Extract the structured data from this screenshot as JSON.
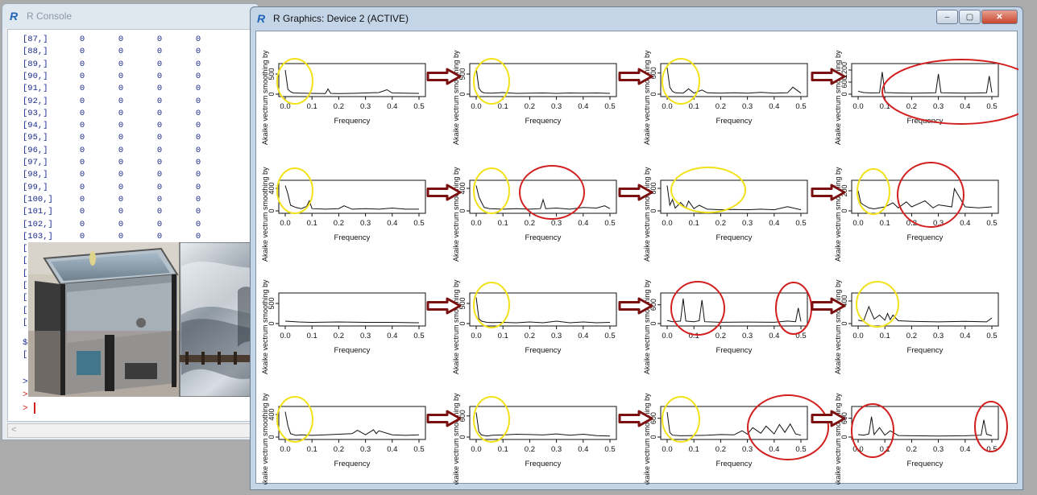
{
  "console": {
    "title": "R Console",
    "rows": [
      {
        "idx": "[87,]",
        "cells": [
          "0",
          "0",
          "0",
          "0"
        ]
      },
      {
        "idx": "[88,]",
        "cells": [
          "0",
          "0",
          "0",
          "0"
        ]
      },
      {
        "idx": "[89,]",
        "cells": [
          "0",
          "0",
          "0",
          "0"
        ]
      },
      {
        "idx": "[90,]",
        "cells": [
          "0",
          "0",
          "0",
          "0"
        ]
      },
      {
        "idx": "[91,]",
        "cells": [
          "0",
          "0",
          "0",
          "0"
        ]
      },
      {
        "idx": "[92,]",
        "cells": [
          "0",
          "0",
          "0",
          "0"
        ]
      },
      {
        "idx": "[93,]",
        "cells": [
          "0",
          "0",
          "0",
          "0"
        ]
      },
      {
        "idx": "[94,]",
        "cells": [
          "0",
          "0",
          "0",
          "0"
        ]
      },
      {
        "idx": "[95,]",
        "cells": [
          "0",
          "0",
          "0",
          "0"
        ]
      },
      {
        "idx": "[96,]",
        "cells": [
          "0",
          "0",
          "0",
          "0"
        ]
      },
      {
        "idx": "[97,]",
        "cells": [
          "0",
          "0",
          "0",
          "0"
        ]
      },
      {
        "idx": "[98,]",
        "cells": [
          "0",
          "0",
          "0",
          "0"
        ]
      },
      {
        "idx": "[99,]",
        "cells": [
          "0",
          "0",
          "0",
          "0"
        ]
      },
      {
        "idx": "[100,]",
        "cells": [
          "0",
          "0",
          "0",
          "0"
        ]
      },
      {
        "idx": "[101,]",
        "cells": [
          "0",
          "0",
          "0",
          "0"
        ]
      },
      {
        "idx": "[102,]",
        "cells": [
          "0",
          "0",
          "0",
          "0"
        ]
      },
      {
        "idx": "[103,]",
        "cells": [
          "0",
          "0",
          "0",
          "0"
        ]
      }
    ],
    "partial_lines": [
      "[1",
      "[1",
      "[1",
      "[1",
      "[1",
      "[1",
      "[1"
    ],
    "dollar_line": "$e",
    "dollar_value": "[1",
    "prompt": ">"
  },
  "graphics": {
    "title": "R Graphics: Device 2 (ACTIVE)",
    "minimize": "‒",
    "maximize": "▢",
    "close": "✕"
  },
  "chart_data": [
    {
      "type": "line",
      "panel": "r1c1",
      "xlabel": "Frequency",
      "ylabel": "Akaike  vectrum smoothing by",
      "xticks": [
        "0.0",
        "0.1",
        "0.2",
        "0.3",
        "0.4",
        "0.5"
      ],
      "yticks": [
        "0",
        "500"
      ],
      "ylim": [
        0,
        700
      ],
      "x": [
        0.0,
        0.01,
        0.02,
        0.03,
        0.06,
        0.1,
        0.15,
        0.16,
        0.17,
        0.2,
        0.25,
        0.3,
        0.35,
        0.38,
        0.4,
        0.45,
        0.5
      ],
      "y": [
        600,
        120,
        60,
        30,
        25,
        20,
        15,
        130,
        20,
        15,
        20,
        30,
        40,
        110,
        30,
        25,
        20
      ]
    },
    {
      "type": "line",
      "panel": "r1c2",
      "xlabel": "Frequency",
      "ylabel": "Akaike  vectrum smoothing by",
      "xticks": [
        "0.0",
        "0.1",
        "0.2",
        "0.3",
        "0.4",
        "0.5"
      ],
      "yticks": [
        "0",
        "500"
      ],
      "ylim": [
        0,
        700
      ],
      "x": [
        0.0,
        0.01,
        0.02,
        0.03,
        0.06,
        0.1,
        0.15,
        0.2,
        0.25,
        0.3,
        0.35,
        0.4,
        0.45,
        0.5
      ],
      "y": [
        650,
        150,
        60,
        30,
        25,
        40,
        20,
        25,
        30,
        20,
        30,
        25,
        30,
        20
      ]
    },
    {
      "type": "line",
      "panel": "r1c3",
      "xlabel": "Frequency",
      "ylabel": "Akaike  vectrum smoothing by",
      "xticks": [
        "0.0",
        "0.1",
        "0.2",
        "0.3",
        "0.4",
        "0.5"
      ],
      "yticks": [
        "0",
        "600"
      ],
      "ylim": [
        0,
        800
      ],
      "x": [
        0.0,
        0.01,
        0.02,
        0.03,
        0.06,
        0.08,
        0.1,
        0.13,
        0.15,
        0.2,
        0.25,
        0.3,
        0.35,
        0.4,
        0.45,
        0.47,
        0.5
      ],
      "y": [
        750,
        200,
        80,
        40,
        30,
        150,
        30,
        120,
        40,
        30,
        40,
        30,
        50,
        30,
        40,
        200,
        30
      ]
    },
    {
      "type": "line",
      "panel": "r1c4",
      "xlabel": "Frequency",
      "ylabel": "Akaike  vectrum smoothing by",
      "xticks": [
        "0.0",
        "0.1",
        "0.2",
        "0.3",
        "0.4",
        "0.5"
      ],
      "yticks": [
        "0",
        "600",
        "1200"
      ],
      "ylim": [
        0,
        1400
      ],
      "x": [
        0.0,
        0.02,
        0.05,
        0.08,
        0.09,
        0.1,
        0.15,
        0.2,
        0.25,
        0.29,
        0.3,
        0.31,
        0.35,
        0.4,
        0.45,
        0.48,
        0.49,
        0.5
      ],
      "y": [
        150,
        80,
        60,
        70,
        1100,
        80,
        60,
        50,
        60,
        70,
        1000,
        70,
        60,
        50,
        60,
        70,
        900,
        80
      ]
    },
    {
      "type": "line",
      "panel": "r2c1",
      "xlabel": "Frequency",
      "ylabel": "Akaike  vectrum smoothing by",
      "xticks": [
        "0.0",
        "0.1",
        "0.2",
        "0.3",
        "0.4",
        "0.5"
      ],
      "yticks": [
        "0",
        "400"
      ],
      "ylim": [
        0,
        500
      ],
      "x": [
        0.0,
        0.01,
        0.02,
        0.04,
        0.06,
        0.08,
        0.09,
        0.1,
        0.15,
        0.2,
        0.22,
        0.25,
        0.3,
        0.35,
        0.4,
        0.45,
        0.5
      ],
      "y": [
        450,
        300,
        100,
        60,
        40,
        80,
        180,
        40,
        30,
        40,
        90,
        30,
        40,
        30,
        50,
        30,
        30
      ]
    },
    {
      "type": "line",
      "panel": "r2c2",
      "xlabel": "Frequency",
      "ylabel": "Akaike  vectrum smoothing by",
      "xticks": [
        "0.0",
        "0.1",
        "0.2",
        "0.3",
        "0.4",
        "0.5"
      ],
      "yticks": [
        "0",
        "400"
      ],
      "ylim": [
        0,
        500
      ],
      "x": [
        0.0,
        0.01,
        0.02,
        0.03,
        0.05,
        0.1,
        0.15,
        0.2,
        0.24,
        0.25,
        0.26,
        0.3,
        0.35,
        0.4,
        0.45,
        0.48,
        0.5
      ],
      "y": [
        450,
        250,
        150,
        60,
        40,
        30,
        40,
        30,
        40,
        200,
        40,
        50,
        30,
        60,
        50,
        90,
        40
      ]
    },
    {
      "type": "line",
      "panel": "r2c3",
      "xlabel": "Frequency",
      "ylabel": "Akaike  vectrum smoothing by",
      "xticks": [
        "0.0",
        "0.1",
        "0.2",
        "0.3",
        "0.4",
        "0.5"
      ],
      "yticks": [
        "0",
        "800"
      ],
      "ylim": [
        0,
        1000
      ],
      "x": [
        0.0,
        0.01,
        0.02,
        0.03,
        0.05,
        0.07,
        0.08,
        0.1,
        0.12,
        0.15,
        0.2,
        0.25,
        0.3,
        0.35,
        0.4,
        0.45,
        0.5
      ],
      "y": [
        900,
        200,
        400,
        100,
        300,
        100,
        350,
        80,
        200,
        60,
        40,
        50,
        40,
        60,
        40,
        150,
        40
      ]
    },
    {
      "type": "line",
      "panel": "r2c4",
      "xlabel": "Frequency",
      "ylabel": "Akaike  vectrum smoothing by",
      "xticks": [
        "0.0",
        "0.1",
        "0.2",
        "0.3",
        "0.4",
        "0.5"
      ],
      "yticks": [
        "0",
        "200"
      ],
      "ylim": [
        0,
        280
      ],
      "x": [
        0.0,
        0.01,
        0.02,
        0.04,
        0.06,
        0.1,
        0.13,
        0.15,
        0.18,
        0.2,
        0.25,
        0.28,
        0.3,
        0.35,
        0.36,
        0.4,
        0.45,
        0.5
      ],
      "y": [
        200,
        80,
        60,
        30,
        20,
        40,
        80,
        30,
        90,
        40,
        100,
        30,
        60,
        40,
        220,
        40,
        30,
        40
      ]
    },
    {
      "type": "line",
      "panel": "r3c1",
      "xlabel": "Frequency",
      "ylabel": "Akaike  vectrum smoothing by",
      "xticks": [
        "0.0",
        "0.1",
        "0.2",
        "0.3",
        "0.4",
        "0.5"
      ],
      "yticks": [
        "0",
        "500"
      ],
      "ylim": [
        0,
        700
      ],
      "x": [
        0.0,
        0.05,
        0.1,
        0.2,
        0.3,
        0.4,
        0.5
      ],
      "y": [
        60,
        40,
        30,
        40,
        30,
        30,
        20
      ]
    },
    {
      "type": "line",
      "panel": "r3c2",
      "xlabel": "Frequency",
      "ylabel": "Akaike  vectrum smoothing by",
      "xticks": [
        "0.0",
        "0.1",
        "0.2",
        "0.3",
        "0.4",
        "0.5"
      ],
      "yticks": [
        "0",
        "500"
      ],
      "ylim": [
        0,
        700
      ],
      "x": [
        0.0,
        0.01,
        0.02,
        0.04,
        0.06,
        0.1,
        0.15,
        0.2,
        0.25,
        0.3,
        0.35,
        0.4,
        0.45,
        0.5
      ],
      "y": [
        650,
        120,
        60,
        30,
        25,
        30,
        20,
        40,
        20,
        60,
        20,
        40,
        20,
        30
      ]
    },
    {
      "type": "line",
      "panel": "r3c3",
      "xlabel": "Frequency",
      "ylabel": "Akaike  vectrum smoothing by",
      "xticks": [
        "0.0",
        "0.1",
        "0.2",
        "0.3",
        "0.4",
        "0.5"
      ],
      "yticks": [
        "0",
        "600"
      ],
      "ylim": [
        0,
        900
      ],
      "x": [
        0.0,
        0.02,
        0.05,
        0.06,
        0.07,
        0.1,
        0.12,
        0.13,
        0.14,
        0.2,
        0.3,
        0.4,
        0.45,
        0.48,
        0.49,
        0.5
      ],
      "y": [
        100,
        60,
        80,
        800,
        80,
        60,
        90,
        750,
        60,
        40,
        50,
        40,
        80,
        60,
        500,
        70
      ]
    },
    {
      "type": "line",
      "panel": "r3c4",
      "xlabel": "Frequency",
      "ylabel": "Akaike  vectrum smoothing by",
      "xticks": [
        "0.0",
        "0.1",
        "0.2",
        "0.3",
        "0.4",
        "0.5"
      ],
      "yticks": [
        "0",
        "400"
      ],
      "ylim": [
        0,
        500
      ],
      "x": [
        0.0,
        0.02,
        0.04,
        0.06,
        0.08,
        0.1,
        0.11,
        0.12,
        0.13,
        0.15,
        0.2,
        0.3,
        0.4,
        0.48,
        0.5
      ],
      "y": [
        60,
        40,
        300,
        80,
        150,
        60,
        180,
        70,
        150,
        50,
        40,
        30,
        40,
        30,
        100
      ]
    },
    {
      "type": "line",
      "panel": "r4c1",
      "xlabel": "Frequency",
      "ylabel": "Akaike  vectrum smoothing by",
      "xticks": [
        "0.0",
        "0.1",
        "0.2",
        "0.3",
        "0.4",
        "0.5"
      ],
      "yticks": [
        "0",
        "400"
      ],
      "ylim": [
        0,
        500
      ],
      "x": [
        0.0,
        0.01,
        0.02,
        0.04,
        0.06,
        0.1,
        0.15,
        0.2,
        0.25,
        0.27,
        0.3,
        0.33,
        0.34,
        0.35,
        0.4,
        0.45,
        0.5
      ],
      "y": [
        450,
        200,
        60,
        30,
        40,
        30,
        40,
        50,
        60,
        120,
        40,
        130,
        60,
        110,
        40,
        30,
        40
      ]
    },
    {
      "type": "line",
      "panel": "r4c2",
      "xlabel": "Frequency",
      "ylabel": "Akaike  vectrum smoothing by",
      "xticks": [
        "0.0",
        "0.1",
        "0.2",
        "0.3",
        "0.4",
        "0.5"
      ],
      "yticks": [
        "0",
        "600"
      ],
      "ylim": [
        0,
        800
      ],
      "x": [
        0.0,
        0.01,
        0.02,
        0.04,
        0.06,
        0.1,
        0.15,
        0.2,
        0.25,
        0.3,
        0.35,
        0.4,
        0.45,
        0.5
      ],
      "y": [
        700,
        150,
        60,
        30,
        50,
        60,
        80,
        70,
        60,
        90,
        50,
        80,
        40,
        30
      ]
    },
    {
      "type": "line",
      "panel": "r4c3",
      "xlabel": "Frequency",
      "ylabel": "Akaike  vectrum smoothing by",
      "xticks": [
        "0.0",
        "0.1",
        "0.2",
        "0.3",
        "0.4",
        "0.5"
      ],
      "yticks": [
        "0",
        "600"
      ],
      "ylim": [
        0,
        900
      ],
      "x": [
        0.0,
        0.01,
        0.02,
        0.05,
        0.1,
        0.15,
        0.2,
        0.25,
        0.28,
        0.3,
        0.32,
        0.35,
        0.37,
        0.4,
        0.42,
        0.44,
        0.46,
        0.48,
        0.5
      ],
      "y": [
        800,
        150,
        60,
        40,
        50,
        60,
        80,
        70,
        200,
        90,
        300,
        120,
        350,
        100,
        400,
        150,
        420,
        100,
        60
      ]
    },
    {
      "type": "line",
      "panel": "r4c4",
      "xlabel": "Frequency",
      "ylabel": "Akaike  vectrum smoothing by",
      "xticks": [
        "0.0",
        "0.1",
        "0.2",
        "0.3",
        "0.4",
        "0.5"
      ],
      "yticks": [
        "0",
        "600"
      ],
      "ylim": [
        0,
        900
      ],
      "x": [
        0.0,
        0.02,
        0.04,
        0.05,
        0.06,
        0.08,
        0.1,
        0.12,
        0.15,
        0.2,
        0.3,
        0.4,
        0.46,
        0.47,
        0.48,
        0.5
      ],
      "y": [
        80,
        60,
        100,
        650,
        80,
        300,
        60,
        200,
        50,
        40,
        30,
        40,
        60,
        550,
        90,
        40
      ]
    }
  ],
  "annotation_colors": {
    "yellow": "#f2e21a",
    "red": "#d21f1f",
    "arrow": "#7a1010"
  }
}
